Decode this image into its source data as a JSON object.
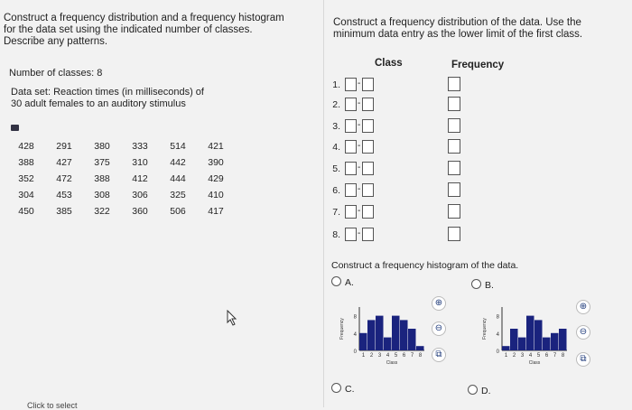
{
  "left_panel": {
    "question_lines": [
      "Construct a frequency distribution and a frequency histogram",
      "for the data set using the indicated number of classes.",
      "Describe any patterns."
    ],
    "classes_label": "Number of classes: 8",
    "dataset_lines": [
      "Data set: Reaction times (in milliseconds) of",
      "30 adult females to an auditory stimulus"
    ],
    "info_icon": "info-icon",
    "data_rows": [
      [
        "428",
        "291",
        "380",
        "333",
        "514",
        "421"
      ],
      [
        "388",
        "427",
        "375",
        "310",
        "442",
        "390"
      ],
      [
        "352",
        "472",
        "388",
        "412",
        "444",
        "429"
      ],
      [
        "304",
        "453",
        "308",
        "306",
        "325",
        "410"
      ],
      [
        "450",
        "385",
        "322",
        "360",
        "506",
        "417"
      ]
    ],
    "bottom_link": "Click to select"
  },
  "right_panel": {
    "instruction_lines": [
      "Construct a frequency distribution of the data. Use the",
      "minimum data entry as the lower limit of the first class."
    ],
    "class_header": "Class",
    "frequency_header": "Frequency",
    "rows": [
      "1.",
      "2.",
      "3.",
      "4.",
      "5.",
      "6.",
      "7.",
      "8."
    ],
    "class_dash": "-",
    "histogram_prompt": "Construct a frequency histogram of the data.",
    "options": {
      "a": "A.",
      "b": "B.",
      "c": "C.",
      "d": "D."
    },
    "axis_label_y": "Frequency",
    "axis_label_x": "Class",
    "y_ticks": [
      "8",
      "4",
      "0"
    ],
    "x_ticks": [
      "1",
      "2",
      "3",
      "4",
      "5",
      "6",
      "7",
      "8"
    ],
    "accent_color": "#1a237e"
  },
  "chart_data": [
    {
      "type": "bar",
      "option": "A",
      "categories": [
        "1",
        "2",
        "3",
        "4",
        "5",
        "6",
        "7",
        "8"
      ],
      "values": [
        4,
        7,
        8,
        3,
        8,
        7,
        5,
        1
      ],
      "xlabel": "Class",
      "ylabel": "Frequency",
      "ylim": [
        0,
        10
      ]
    },
    {
      "type": "bar",
      "option": "B",
      "categories": [
        "1",
        "2",
        "3",
        "4",
        "5",
        "6",
        "7",
        "8"
      ],
      "values": [
        1,
        5,
        3,
        8,
        7,
        3,
        4,
        5
      ],
      "xlabel": "Class",
      "ylabel": "Frequency",
      "ylim": [
        0,
        10
      ]
    }
  ]
}
